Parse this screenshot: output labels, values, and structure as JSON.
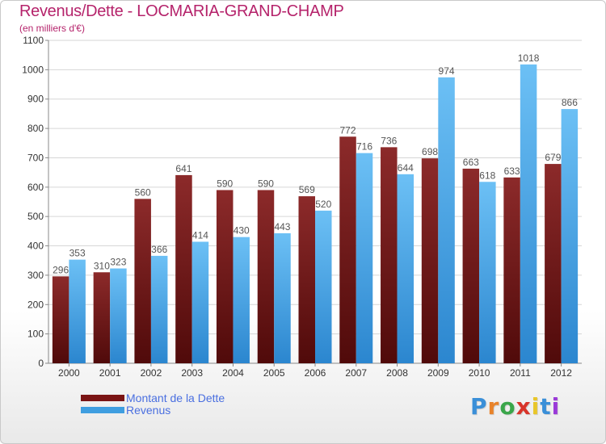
{
  "chart_data": {
    "type": "bar",
    "title": "Revenus/Dette - LOCMARIA-GRAND-CHAMP",
    "subtitle": "(en milliers d'€)",
    "categories": [
      "2000",
      "2001",
      "2002",
      "2003",
      "2004",
      "2005",
      "2006",
      "2007",
      "2008",
      "2009",
      "2010",
      "2011",
      "2012"
    ],
    "series": [
      {
        "name": "Montant de la Dette",
        "color": "#7a1414",
        "values": [
          296,
          310,
          560,
          641,
          590,
          590,
          569,
          772,
          736,
          698,
          663,
          633,
          679
        ]
      },
      {
        "name": "Revenus",
        "color": "#3f9ee0",
        "values": [
          353,
          323,
          366,
          414,
          430,
          443,
          520,
          716,
          644,
          974,
          618,
          1018,
          866
        ]
      }
    ],
    "ylim": [
      0,
      1100
    ],
    "yticks": [
      0,
      100,
      200,
      300,
      400,
      500,
      600,
      700,
      800,
      900,
      1000,
      1100
    ],
    "grid": true,
    "legend_position": "bottom-left"
  },
  "logo": {
    "letters": [
      {
        "ch": "P",
        "color": "#3a8fd8"
      },
      {
        "ch": "r",
        "color": "#e8832a"
      },
      {
        "ch": "o",
        "color": "#3aa64a"
      },
      {
        "ch": "x",
        "color": "#d8342a"
      },
      {
        "ch": "i",
        "color": "#e8c62a"
      },
      {
        "ch": "t",
        "color": "#3a8fd8"
      },
      {
        "ch": "i",
        "color": "#9a3ad8"
      }
    ]
  }
}
